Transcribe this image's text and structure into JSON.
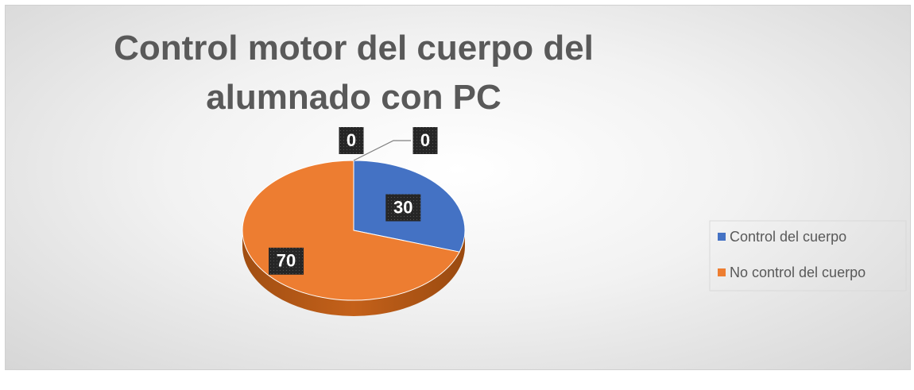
{
  "chart_data": {
    "type": "pie",
    "title": "Control motor del cuerpo del alumnado con PC",
    "categories": [
      "Control del cuerpo",
      "No control del cuerpo",
      null,
      null
    ],
    "values": [
      30,
      70,
      0,
      0
    ],
    "colors": [
      "#4472c4",
      "#ed7d31",
      null,
      null
    ],
    "legend": "right"
  }
}
